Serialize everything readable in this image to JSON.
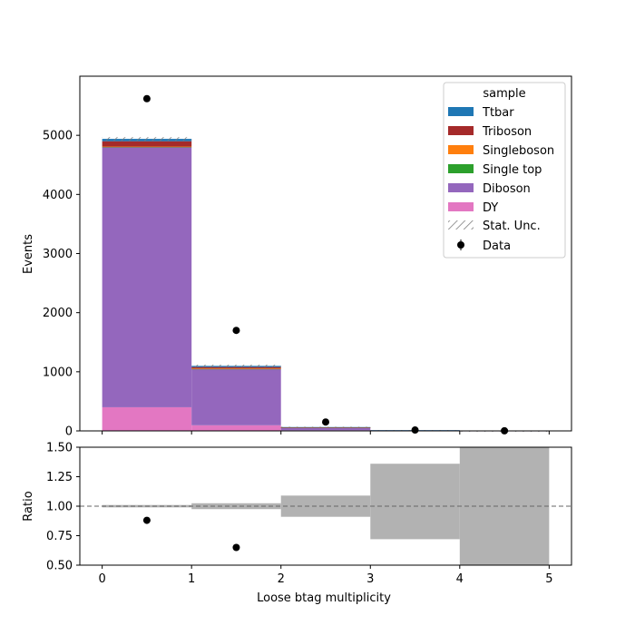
{
  "chart_data": [
    {
      "type": "bar",
      "stacked": true,
      "xlabel": "",
      "ylabel": "Events",
      "xlim": [
        -0.25,
        5.25
      ],
      "ylim": [
        0,
        6000
      ],
      "bin_edges": [
        0,
        1,
        2,
        3,
        4,
        5
      ],
      "x_ticks": [
        "0",
        "1",
        "2",
        "3",
        "4",
        "5"
      ],
      "y_ticks": [
        "0",
        "1000",
        "2000",
        "3000",
        "4000",
        "5000"
      ],
      "legend": {
        "title": "sample",
        "placement": "top-right",
        "stat_unc_label": "Stat. Unc.",
        "data_label": "Data"
      },
      "series": [
        {
          "name": "DY",
          "color": "#e377c2",
          "values": [
            400,
            95,
            10,
            2,
            0
          ]
        },
        {
          "name": "Diboson",
          "color": "#9467bd",
          "values": [
            4400,
            950,
            45,
            8,
            1
          ]
        },
        {
          "name": "Single top",
          "color": "#2ca02c",
          "values": [
            5,
            5,
            1,
            0,
            0
          ]
        },
        {
          "name": "Singleboson",
          "color": "#ff7f0e",
          "values": [
            5,
            5,
            1,
            0,
            0
          ]
        },
        {
          "name": "Triboson",
          "color": "#a52a2a",
          "values": [
            90,
            25,
            2,
            0,
            0
          ]
        },
        {
          "name": "Ttbar",
          "color": "#1f77b4",
          "values": [
            40,
            20,
            6,
            2,
            0
          ]
        }
      ],
      "stat_unc": [
        30,
        22,
        6,
        2,
        1
      ],
      "data": {
        "name": "Data",
        "x": [
          0.5,
          1.5,
          2.5,
          3.5,
          4.5
        ],
        "y": [
          5620,
          1700,
          150,
          15,
          2
        ]
      }
    },
    {
      "type": "bar",
      "xlabel": "Loose btag multiplicity",
      "ylabel": "Ratio",
      "xlim": [
        -0.25,
        5.25
      ],
      "ylim": [
        0.5,
        1.5
      ],
      "x_ticks": [
        "0",
        "1",
        "2",
        "3",
        "4",
        "5"
      ],
      "y_ticks": [
        "0.50",
        "0.75",
        "1.00",
        "1.25",
        "1.50"
      ],
      "reference_line": 1.0,
      "unc_band": {
        "color": "#b2b2b2",
        "bins": [
          {
            "lo": 0,
            "hi": 1,
            "low": 0.99,
            "high": 1.01
          },
          {
            "lo": 1,
            "hi": 2,
            "low": 0.975,
            "high": 1.025
          },
          {
            "lo": 2,
            "hi": 3,
            "low": 0.91,
            "high": 1.09
          },
          {
            "lo": 3,
            "hi": 4,
            "low": 0.72,
            "high": 1.36
          },
          {
            "lo": 4,
            "hi": 5,
            "low": 0.0,
            "high": 2.0
          }
        ]
      },
      "points": {
        "x": [
          0.5,
          1.5
        ],
        "y": [
          0.88,
          0.65
        ]
      }
    }
  ]
}
